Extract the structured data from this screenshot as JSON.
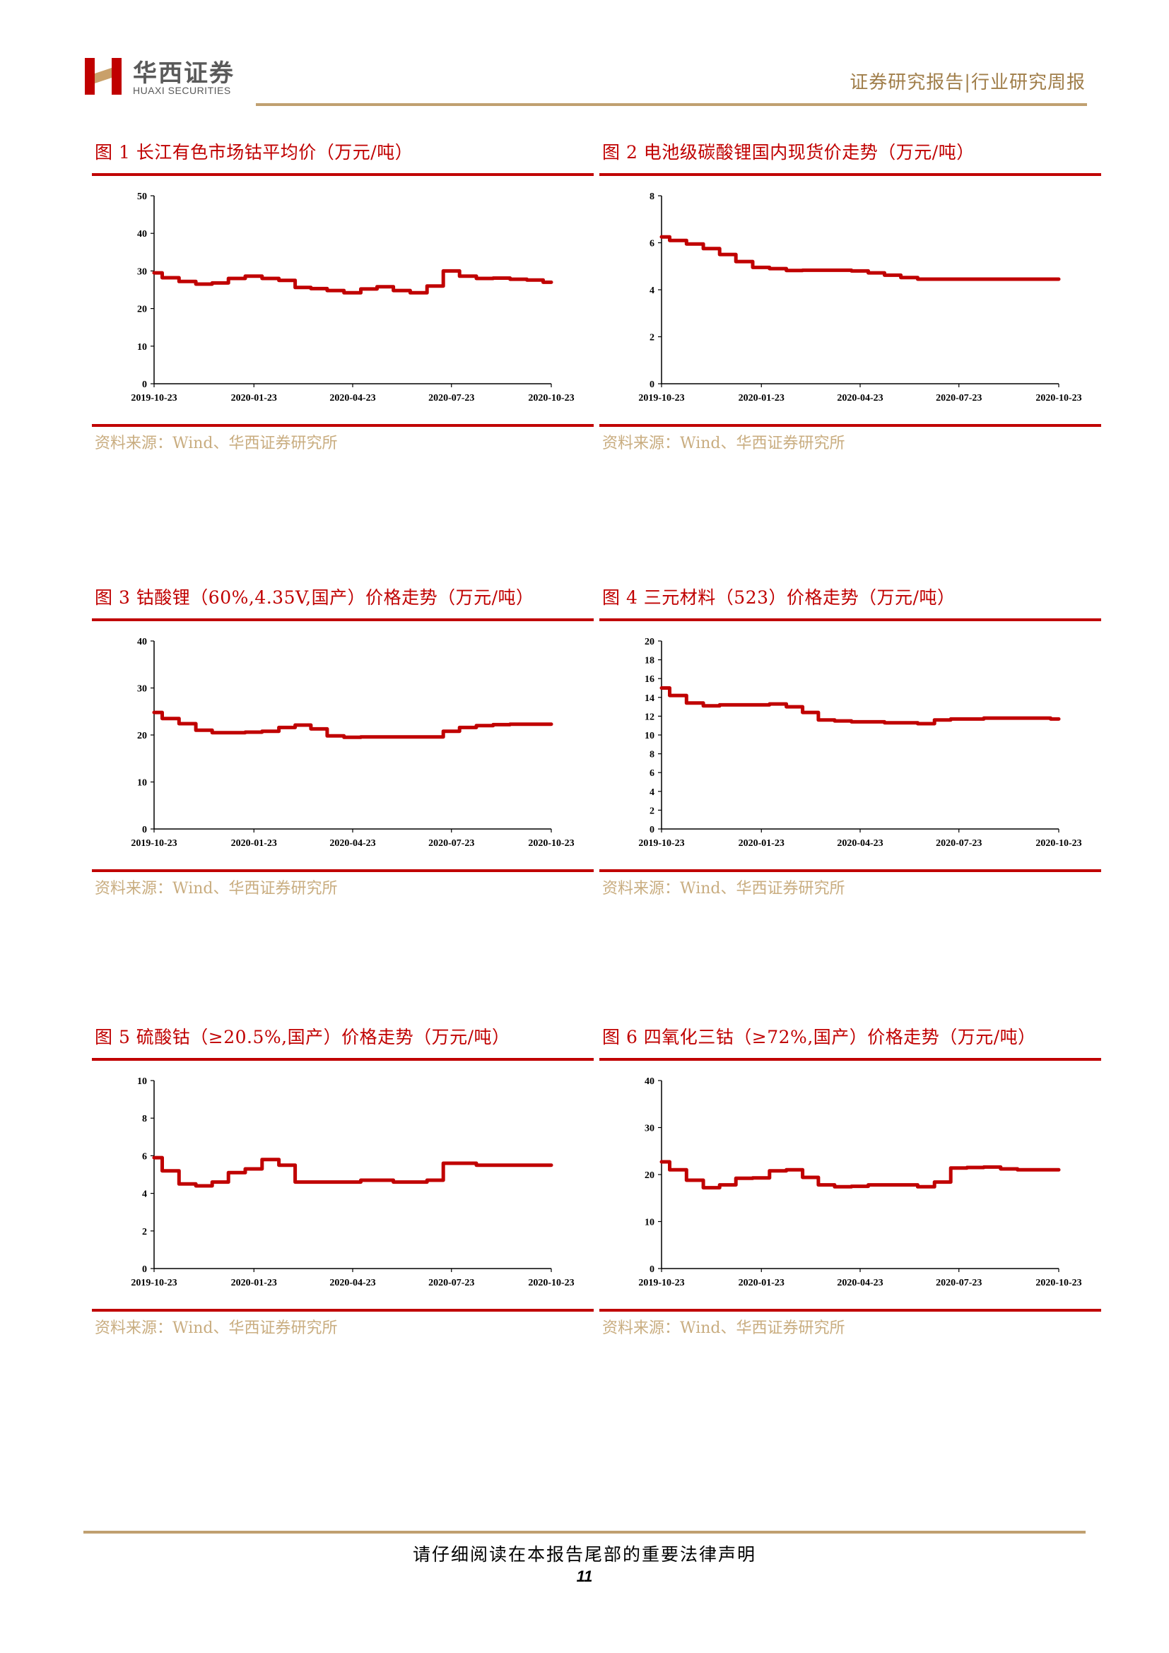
{
  "header": {
    "brand_cn": "华西证券",
    "brand_en": "HUAXI SECURITIES",
    "report_type": "证券研究报告|行业研究周报",
    "accent_color": "#c00000",
    "gold_color": "#c0a070"
  },
  "panels": [
    {
      "title": "图 1 长江有色市场钴平均价（万元/吨）",
      "source": "资料来源：Wind、华西证券研究所",
      "chart_data": {
        "type": "line",
        "x": [
          "2019-10-23",
          "2019-11-07",
          "2019-11-23",
          "2019-12-08",
          "2019-12-23",
          "2020-01-07",
          "2020-01-23",
          "2020-02-07",
          "2020-02-23",
          "2020-03-08",
          "2020-03-23",
          "2020-04-07",
          "2020-04-23",
          "2020-05-08",
          "2020-05-23",
          "2020-06-07",
          "2020-06-23",
          "2020-07-08",
          "2020-07-23",
          "2020-08-07",
          "2020-08-23",
          "2020-09-07",
          "2020-09-23",
          "2020-10-08",
          "2020-10-23"
        ],
        "series": [
          {
            "values": [
              29.5,
              28.2,
              27.2,
              26.5,
              26.8,
              28.0,
              28.6,
              28.0,
              27.5,
              25.6,
              25.3,
              24.8,
              24.2,
              25.2,
              25.8,
              24.8,
              24.2,
              26.0,
              30.0,
              28.6,
              28.0,
              28.1,
              27.8,
              27.6,
              27.0
            ]
          }
        ],
        "xticks": [
          "2019-10-23",
          "2020-01-23",
          "2020-04-23",
          "2020-07-23",
          "2020-10-23"
        ],
        "yticks": [
          "0",
          "10",
          "20",
          "30",
          "40",
          "50"
        ],
        "ylim": [
          0,
          50
        ],
        "color": "#c00000"
      }
    },
    {
      "title": "图 2 电池级碳酸锂国内现货价走势（万元/吨）",
      "source": "资料来源：Wind、华西证券研究所",
      "chart_data": {
        "type": "line",
        "x": [
          "2019-10-23",
          "2019-11-07",
          "2019-11-23",
          "2019-12-08",
          "2019-12-23",
          "2020-01-07",
          "2020-01-23",
          "2020-02-07",
          "2020-02-23",
          "2020-03-08",
          "2020-03-23",
          "2020-04-07",
          "2020-04-23",
          "2020-05-08",
          "2020-05-23",
          "2020-06-07",
          "2020-06-23",
          "2020-07-08",
          "2020-07-23",
          "2020-08-07",
          "2020-08-23",
          "2020-09-07",
          "2020-09-23",
          "2020-10-08",
          "2020-10-23"
        ],
        "series": [
          {
            "values": [
              6.25,
              6.1,
              5.95,
              5.75,
              5.5,
              5.2,
              4.95,
              4.9,
              4.82,
              4.83,
              4.83,
              4.83,
              4.8,
              4.72,
              4.62,
              4.52,
              4.45,
              4.45,
              4.45,
              4.45,
              4.45,
              4.45,
              4.45,
              4.45,
              4.45
            ]
          }
        ],
        "xticks": [
          "2019-10-23",
          "2020-01-23",
          "2020-04-23",
          "2020-07-23",
          "2020-10-23"
        ],
        "yticks": [
          "0",
          "2",
          "4",
          "6",
          "8"
        ],
        "ylim": [
          0,
          8
        ],
        "color": "#c00000"
      }
    },
    {
      "title": "图 3 钴酸锂（60%,4.35V,国产）价格走势（万元/吨）",
      "source": "资料来源：Wind、华西证券研究所",
      "chart_data": {
        "type": "line",
        "x": [
          "2019-10-23",
          "2019-11-07",
          "2019-11-23",
          "2019-12-08",
          "2019-12-23",
          "2020-01-07",
          "2020-01-23",
          "2020-02-07",
          "2020-02-23",
          "2020-03-08",
          "2020-03-23",
          "2020-04-07",
          "2020-04-23",
          "2020-05-08",
          "2020-05-23",
          "2020-06-07",
          "2020-06-23",
          "2020-07-08",
          "2020-07-23",
          "2020-08-07",
          "2020-08-23",
          "2020-09-07",
          "2020-09-23",
          "2020-10-08",
          "2020-10-23"
        ],
        "series": [
          {
            "values": [
              24.8,
              23.5,
              22.4,
              21.0,
              20.5,
              20.5,
              20.6,
              20.8,
              21.6,
              22.1,
              21.3,
              19.8,
              19.5,
              19.6,
              19.6,
              19.6,
              19.6,
              19.6,
              20.8,
              21.6,
              22.0,
              22.2,
              22.3,
              22.3,
              22.3
            ]
          }
        ],
        "xticks": [
          "2019-10-23",
          "2020-01-23",
          "2020-04-23",
          "2020-07-23",
          "2020-10-23"
        ],
        "yticks": [
          "0",
          "10",
          "20",
          "30",
          "40"
        ],
        "ylim": [
          0,
          40
        ],
        "color": "#c00000"
      }
    },
    {
      "title": "图 4 三元材料（523）价格走势（万元/吨）",
      "source": "资料来源：Wind、华西证券研究所",
      "chart_data": {
        "type": "line",
        "x": [
          "2019-10-23",
          "2019-11-07",
          "2019-11-23",
          "2019-12-08",
          "2019-12-23",
          "2020-01-07",
          "2020-01-23",
          "2020-02-07",
          "2020-02-23",
          "2020-03-08",
          "2020-03-23",
          "2020-04-07",
          "2020-04-23",
          "2020-05-08",
          "2020-05-23",
          "2020-06-07",
          "2020-06-23",
          "2020-07-08",
          "2020-07-23",
          "2020-08-07",
          "2020-08-23",
          "2020-09-07",
          "2020-09-23",
          "2020-10-08",
          "2020-10-23"
        ],
        "series": [
          {
            "values": [
              15.0,
              14.2,
              13.4,
              13.1,
              13.2,
              13.2,
              13.2,
              13.3,
              13.0,
              12.4,
              11.6,
              11.5,
              11.4,
              11.4,
              11.3,
              11.3,
              11.2,
              11.6,
              11.7,
              11.7,
              11.8,
              11.8,
              11.8,
              11.8,
              11.7
            ]
          }
        ],
        "xticks": [
          "2019-10-23",
          "2020-01-23",
          "2020-04-23",
          "2020-07-23",
          "2020-10-23"
        ],
        "yticks": [
          "0",
          "2",
          "4",
          "6",
          "8",
          "10",
          "12",
          "14",
          "16",
          "18",
          "20"
        ],
        "ylim": [
          0,
          20
        ],
        "color": "#c00000"
      }
    },
    {
      "title": "图 5 硫酸钴（≥20.5%,国产）价格走势（万元/吨）",
      "source": "资料来源：Wind、华西证券研究所",
      "chart_data": {
        "type": "line",
        "x": [
          "2019-10-23",
          "2019-11-07",
          "2019-11-23",
          "2019-12-08",
          "2019-12-23",
          "2020-01-07",
          "2020-01-23",
          "2020-02-07",
          "2020-02-23",
          "2020-03-08",
          "2020-03-23",
          "2020-04-07",
          "2020-04-23",
          "2020-05-08",
          "2020-05-23",
          "2020-06-07",
          "2020-06-23",
          "2020-07-08",
          "2020-07-23",
          "2020-08-07",
          "2020-08-23",
          "2020-09-07",
          "2020-09-23",
          "2020-10-08",
          "2020-10-23"
        ],
        "series": [
          {
            "values": [
              5.9,
              5.2,
              4.5,
              4.4,
              4.6,
              5.1,
              5.3,
              5.8,
              5.5,
              4.6,
              4.6,
              4.6,
              4.6,
              4.7,
              4.7,
              4.6,
              4.6,
              4.7,
              5.6,
              5.6,
              5.5,
              5.5,
              5.5,
              5.5,
              5.5
            ]
          }
        ],
        "xticks": [
          "2019-10-23",
          "2020-01-23",
          "2020-04-23",
          "2020-07-23",
          "2020-10-23"
        ],
        "yticks": [
          "0",
          "2",
          "4",
          "6",
          "8",
          "10"
        ],
        "ylim": [
          0,
          10
        ],
        "color": "#c00000"
      }
    },
    {
      "title": "图 6 四氧化三钴（≥72%,国产）价格走势（万元/吨）",
      "source": "资料来源：Wind、华西证券研究所",
      "chart_data": {
        "type": "line",
        "x": [
          "2019-10-23",
          "2019-11-07",
          "2019-11-23",
          "2019-12-08",
          "2019-12-23",
          "2020-01-07",
          "2020-01-23",
          "2020-02-07",
          "2020-02-23",
          "2020-03-08",
          "2020-03-23",
          "2020-04-07",
          "2020-04-23",
          "2020-05-08",
          "2020-05-23",
          "2020-06-07",
          "2020-06-23",
          "2020-07-08",
          "2020-07-23",
          "2020-08-07",
          "2020-08-23",
          "2020-09-07",
          "2020-09-23",
          "2020-10-08",
          "2020-10-23"
        ],
        "series": [
          {
            "values": [
              22.7,
              21.0,
              18.8,
              17.2,
              17.8,
              19.2,
              19.3,
              20.8,
              21.0,
              19.4,
              17.8,
              17.4,
              17.5,
              17.8,
              17.8,
              17.8,
              17.4,
              18.4,
              21.4,
              21.5,
              21.6,
              21.2,
              21.0,
              21.0,
              21.0
            ]
          }
        ],
        "xticks": [
          "2019-10-23",
          "2020-01-23",
          "2020-04-23",
          "2020-07-23",
          "2020-10-23"
        ],
        "yticks": [
          "0",
          "10",
          "20",
          "30",
          "40"
        ],
        "ylim": [
          0,
          40
        ],
        "color": "#c00000"
      }
    }
  ],
  "footer": {
    "note": "请仔细阅读在本报告尾部的重要法律声明",
    "page": "11"
  }
}
